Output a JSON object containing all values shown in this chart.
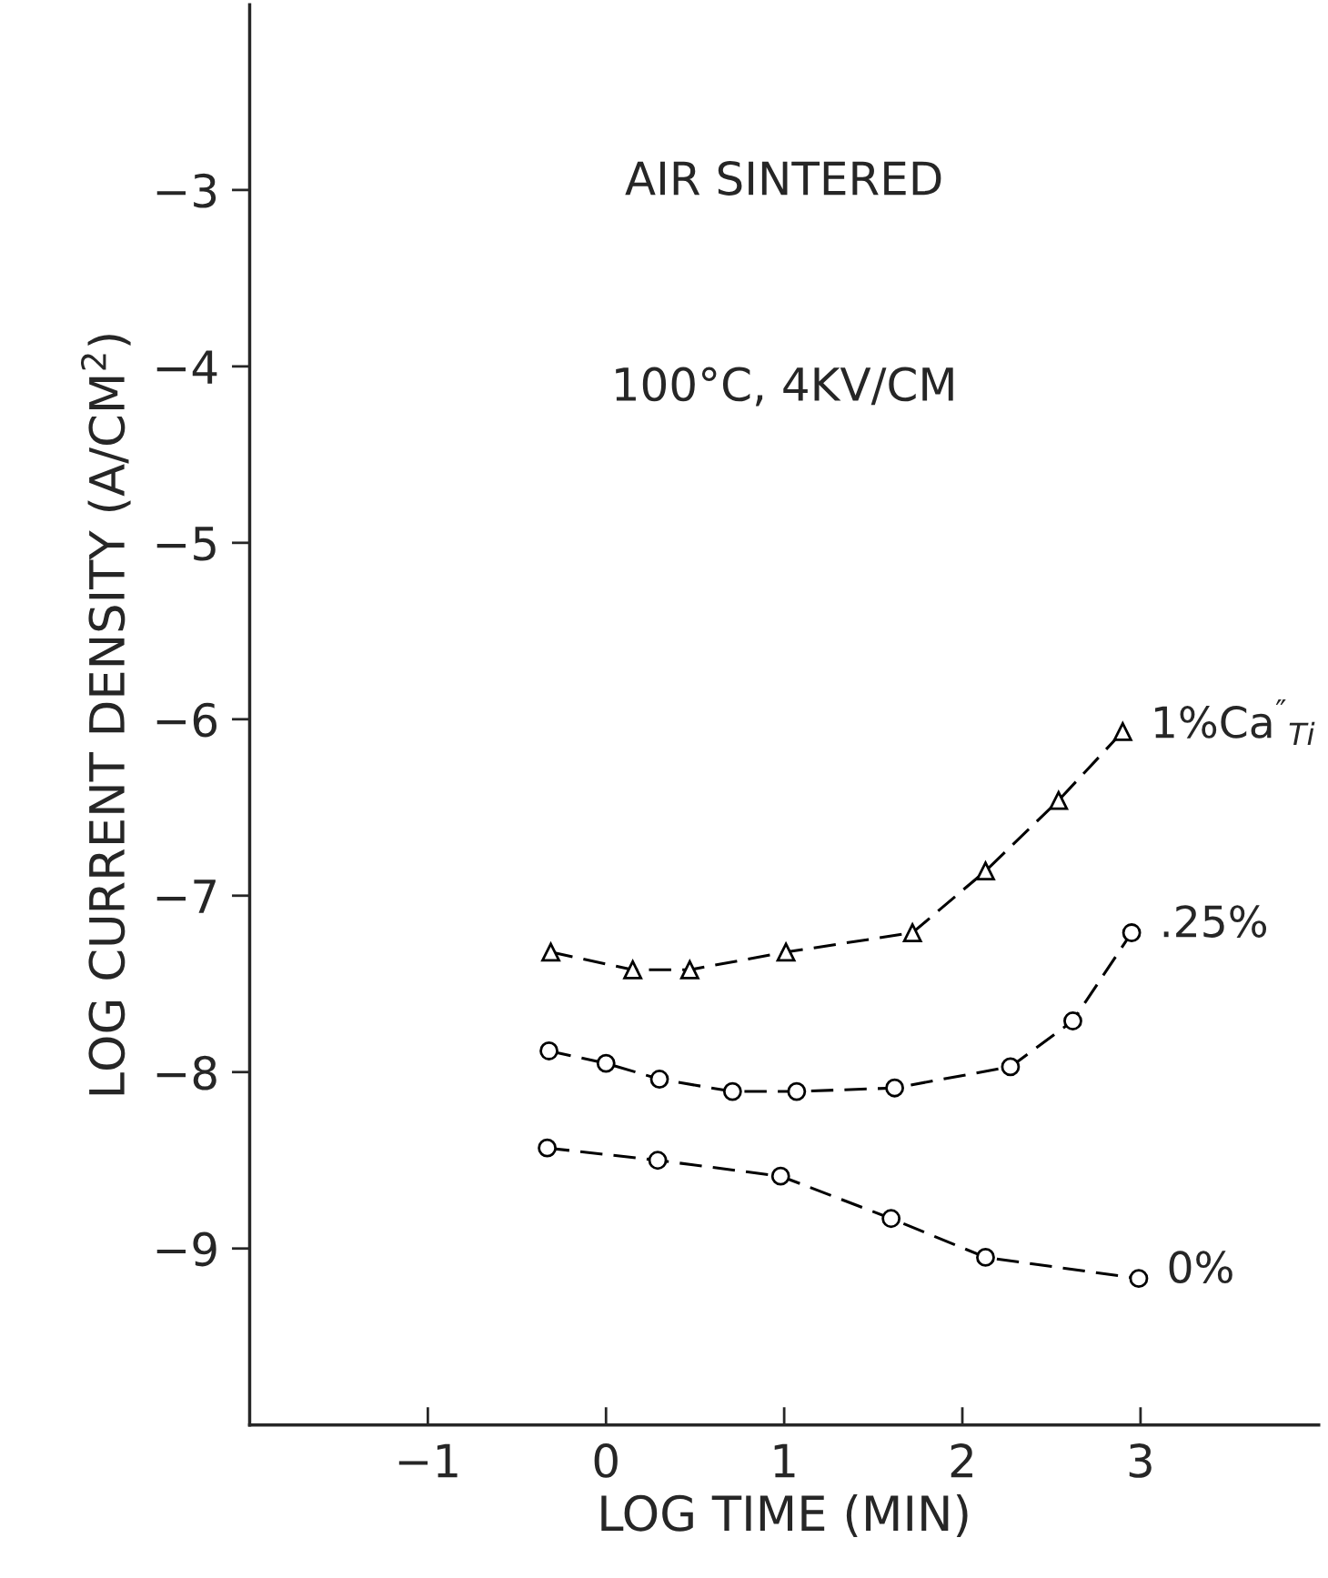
{
  "chart_data": {
    "type": "line",
    "title": "AIR SINTERED",
    "subtitle": "100°C, 4KV/CM",
    "xlabel": "LOG TIME (MIN)",
    "ylabel": "LOG CURRENT DENSITY (A/CM$^{2}$)",
    "xlim": [
      -2,
      4
    ],
    "ylim": [
      -10,
      -1.95
    ],
    "xticks": [
      -1,
      0,
      1,
      2,
      3
    ],
    "yticks": [
      -9,
      -8,
      -7,
      -6,
      -5,
      -4,
      -3
    ],
    "grid": false,
    "legend": false,
    "line_style": "dashed",
    "series": [
      {
        "name": "1%Ca$^{″}$$_{Ti}$",
        "color": "#000000",
        "marker": "triangle",
        "x": [
          -0.31,
          0.15,
          0.47,
          1.01,
          1.72,
          2.13,
          2.54,
          2.9
        ],
        "values": [
          -7.32,
          -7.42,
          -7.42,
          -7.32,
          -7.21,
          -6.86,
          -6.46,
          -6.07
        ]
      },
      {
        "name": ".25%",
        "color": "#000000",
        "marker": "circle",
        "x": [
          -0.32,
          0.0,
          0.3,
          0.71,
          1.07,
          1.62,
          2.27,
          2.62,
          2.95
        ],
        "values": [
          -7.88,
          -7.95,
          -8.04,
          -8.11,
          -8.11,
          -8.09,
          -7.97,
          -7.71,
          -7.21
        ]
      },
      {
        "name": "0%",
        "color": "#000000",
        "marker": "circle",
        "x": [
          -0.33,
          0.29,
          0.98,
          1.6,
          2.13,
          2.99
        ],
        "values": [
          -8.43,
          -8.5,
          -8.59,
          -8.83,
          -9.05,
          -9.17
        ]
      }
    ]
  }
}
